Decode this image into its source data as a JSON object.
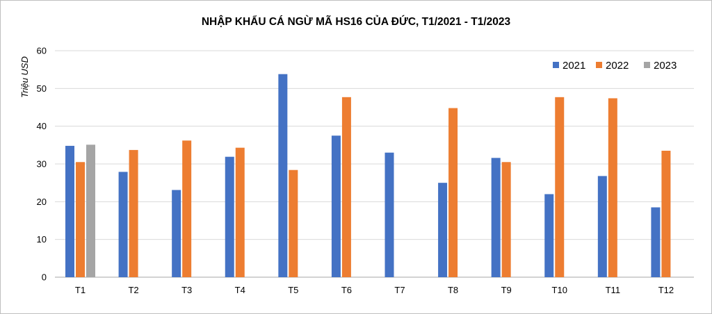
{
  "chart_data": {
    "type": "bar",
    "title": "NHẬP  KHẨU CÁ NGỪ MÃ HS16 CỦA ĐỨC, T1/2021 - T1/2023",
    "ylabel": "Triệu USD",
    "xlabel": "",
    "categories": [
      "T1",
      "T2",
      "T3",
      "T4",
      "T5",
      "T6",
      "T7",
      "T8",
      "T9",
      "T10",
      "T11",
      "T12"
    ],
    "series": [
      {
        "name": "2021",
        "color": "#4472c4",
        "values": [
          34.8,
          27.9,
          23.1,
          31.9,
          53.8,
          37.5,
          33.0,
          25.0,
          31.6,
          22.0,
          26.8,
          18.5
        ]
      },
      {
        "name": "2022",
        "color": "#ed7d31",
        "values": [
          30.5,
          33.7,
          36.2,
          34.3,
          28.4,
          47.7,
          null,
          44.8,
          30.5,
          47.7,
          47.4,
          33.5
        ]
      },
      {
        "name": "2023",
        "color": "#a5a5a5",
        "values": [
          35.1,
          null,
          null,
          null,
          null,
          null,
          null,
          null,
          null,
          null,
          null,
          null
        ]
      }
    ],
    "ylim": [
      0,
      60
    ],
    "yticks": [
      0,
      10,
      20,
      30,
      40,
      50,
      60
    ],
    "grid": true,
    "legend_position": "top-right"
  }
}
